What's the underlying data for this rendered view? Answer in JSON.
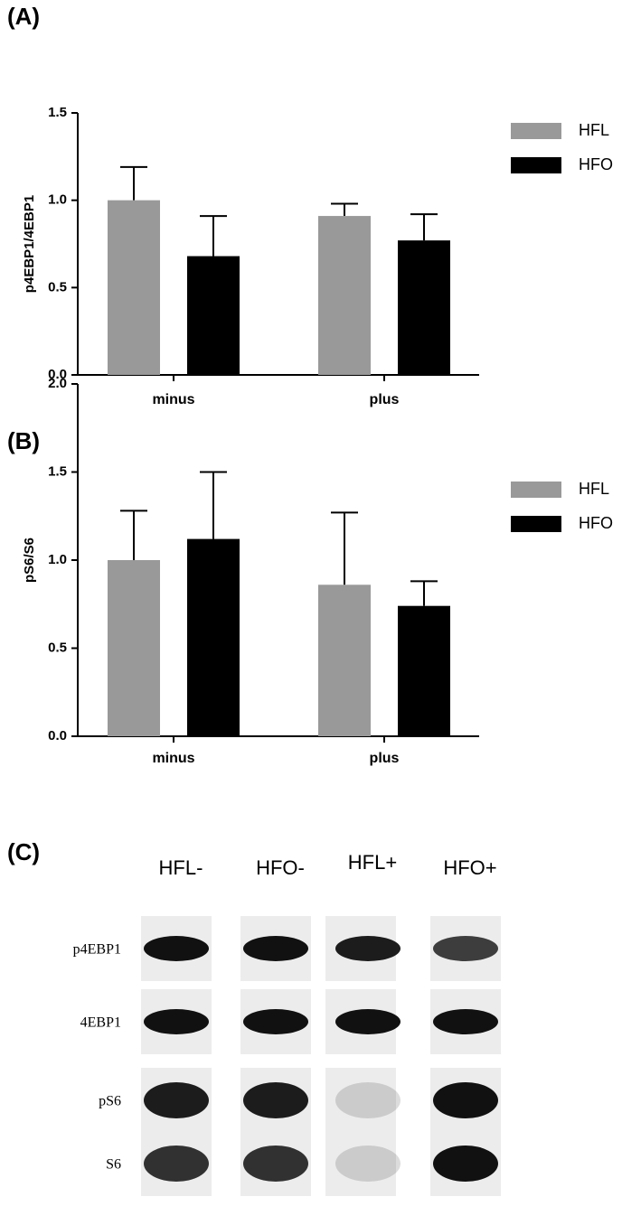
{
  "chart_data": [
    {
      "type": "bar",
      "label": "(A)",
      "y_label": "p4EBP1/4EBP1",
      "categories": [
        "minus",
        "plus"
      ],
      "series": [
        {
          "name": "HFL",
          "color": "#999999",
          "values": [
            1.0,
            0.91
          ],
          "errors": [
            0.19,
            0.07
          ]
        },
        {
          "name": "HFO",
          "color": "#000000",
          "values": [
            0.68,
            0.77
          ],
          "errors": [
            0.23,
            0.15
          ]
        }
      ],
      "ylim": [
        0,
        1.5
      ],
      "yticks": [
        {
          "value": 0,
          "label": "0.0"
        },
        0.5,
        {
          "value": 1,
          "label": "1.0"
        },
        1.5
      ],
      "legend": "right"
    },
    {
      "type": "bar",
      "label": "(B)",
      "y_label": "pS6/S6",
      "categories": [
        "minus",
        "plus"
      ],
      "series": [
        {
          "name": "HFL",
          "color": "#999999",
          "values": [
            1.0,
            0.86
          ],
          "errors": [
            0.28,
            0.41
          ]
        },
        {
          "name": "HFO",
          "color": "#000000",
          "values": [
            1.12,
            0.74
          ],
          "errors": [
            0.38,
            0.14
          ]
        }
      ],
      "ylim": [
        0,
        2
      ],
      "yticks": [
        {
          "value": 0,
          "label": "0.0"
        },
        0.5,
        {
          "value": 1,
          "label": "1.0"
        },
        1.5,
        {
          "value": 2,
          "label": "2.0"
        }
      ],
      "legend": "right"
    }
  ],
  "blot": {
    "label": "(C)",
    "lanes": [
      "HFL-",
      "HFO-",
      "HFL+",
      "HFO+"
    ],
    "rows": [
      "p4EBP1",
      "4EBP1",
      "pS6",
      "S6"
    ]
  }
}
